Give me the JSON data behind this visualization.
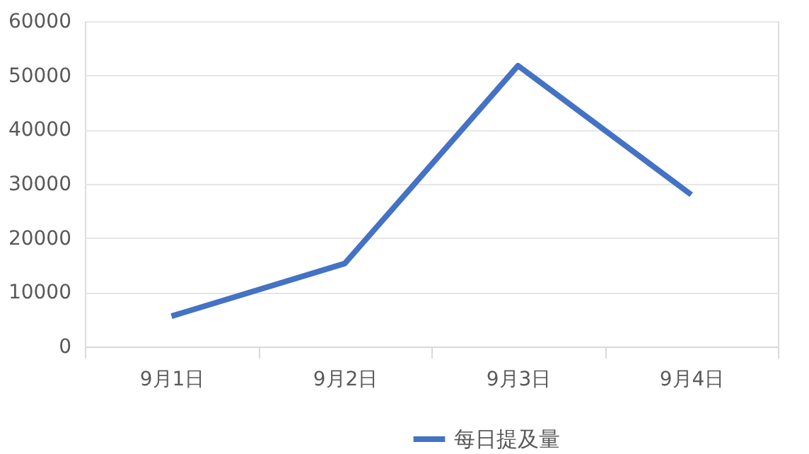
{
  "chart_data": {
    "type": "line",
    "categories": [
      "9月1日",
      "9月2日",
      "9月3日",
      "9月4日"
    ],
    "series": [
      {
        "name": "每日提及量",
        "color": "#4472c4",
        "values": [
          5600,
          15300,
          51800,
          28000
        ]
      }
    ],
    "ylim": [
      0,
      60000
    ],
    "yticks": [
      0,
      10000,
      20000,
      30000,
      40000,
      50000,
      60000
    ],
    "grid": "y",
    "legend": "bottom",
    "line_style": "solid",
    "marker": "none"
  }
}
